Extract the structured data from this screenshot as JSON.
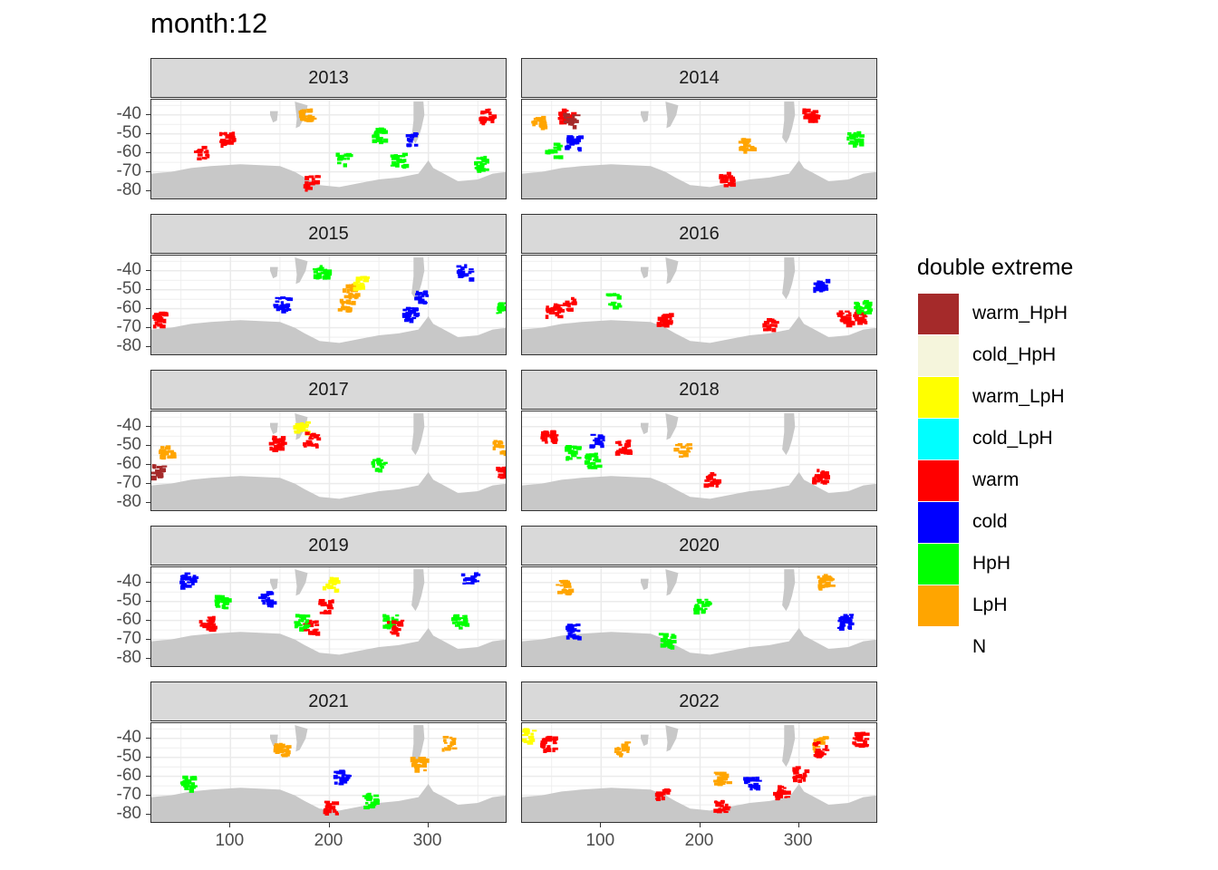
{
  "title": "month:12",
  "chart_data": {
    "type": "heatmap",
    "title": "month:12",
    "facet_labels": [
      "2013",
      "2014",
      "2015",
      "2016",
      "2017",
      "2018",
      "2019",
      "2020",
      "2021",
      "2022"
    ],
    "x_ticks": [
      100,
      200,
      300
    ],
    "y_ticks": [
      -40,
      -50,
      -60,
      -70,
      -80
    ],
    "y_tick_labels": [
      "-40",
      "-50",
      "-60",
      "-70",
      "-80"
    ],
    "x_tick_labels": [
      "100",
      "200",
      "300"
    ],
    "xlim": [
      20,
      380
    ],
    "ylim": [
      -85,
      -32
    ],
    "legend": {
      "title": "double extreme",
      "placement": "right",
      "entries": [
        {
          "label": "warm_HpH",
          "color": "#a52a2a"
        },
        {
          "label": "cold_HpH",
          "color": "#f5f5dc"
        },
        {
          "label": "warm_LpH",
          "color": "#ffff00"
        },
        {
          "label": "cold_LpH",
          "color": "#00ffff"
        },
        {
          "label": "warm",
          "color": "#ff0000"
        },
        {
          "label": "cold",
          "color": "#0000ff"
        },
        {
          "label": "HpH",
          "color": "#00ff00"
        },
        {
          "label": "LpH",
          "color": "#ffa500"
        },
        {
          "label": "N",
          "color": "#ffffff"
        }
      ]
    },
    "panels": [
      {
        "year": "2013",
        "patches": [
          {
            "c": "HpH",
            "lon": 248,
            "lat": -50
          },
          {
            "c": "cold",
            "lon": 283,
            "lat": -52
          },
          {
            "c": "HpH",
            "lon": 213,
            "lat": -63
          },
          {
            "c": "HpH",
            "lon": 352,
            "lat": -65
          },
          {
            "c": "LpH",
            "lon": 175,
            "lat": -40
          },
          {
            "c": "warm",
            "lon": 358,
            "lat": -40
          },
          {
            "c": "warm",
            "lon": 95,
            "lat": -52
          },
          {
            "c": "warm",
            "lon": 70,
            "lat": -59
          },
          {
            "c": "HpH",
            "lon": 268,
            "lat": -63
          },
          {
            "c": "warm",
            "lon": 180,
            "lat": -75
          }
        ]
      },
      {
        "year": "2014",
        "patches": [
          {
            "c": "warm",
            "lon": 63,
            "lat": -40
          },
          {
            "c": "warm_HpH",
            "lon": 67,
            "lat": -42
          },
          {
            "c": "LpH",
            "lon": 35,
            "lat": -43
          },
          {
            "c": "cold",
            "lon": 70,
            "lat": -54
          },
          {
            "c": "HpH",
            "lon": 50,
            "lat": -58
          },
          {
            "c": "LpH",
            "lon": 245,
            "lat": -55
          },
          {
            "c": "warm",
            "lon": 310,
            "lat": -40
          },
          {
            "c": "HpH",
            "lon": 355,
            "lat": -52
          },
          {
            "c": "warm",
            "lon": 225,
            "lat": -73
          }
        ]
      },
      {
        "year": "2015",
        "patches": [
          {
            "c": "warm",
            "lon": 28,
            "lat": -65
          },
          {
            "c": "LpH",
            "lon": 220,
            "lat": -50
          },
          {
            "c": "warm_LpH",
            "lon": 230,
            "lat": -46
          },
          {
            "c": "HpH",
            "lon": 190,
            "lat": -40
          },
          {
            "c": "cold",
            "lon": 290,
            "lat": -53
          },
          {
            "c": "cold",
            "lon": 335,
            "lat": -40
          },
          {
            "c": "LpH",
            "lon": 215,
            "lat": -58
          },
          {
            "c": "HpH",
            "lon": 375,
            "lat": -60
          },
          {
            "c": "cold",
            "lon": 280,
            "lat": -62
          },
          {
            "c": "cold",
            "lon": 150,
            "lat": -57
          }
        ]
      },
      {
        "year": "2016",
        "patches": [
          {
            "c": "warm",
            "lon": 50,
            "lat": -60
          },
          {
            "c": "warm",
            "lon": 65,
            "lat": -57
          },
          {
            "c": "HpH",
            "lon": 110,
            "lat": -55
          },
          {
            "c": "warm",
            "lon": 162,
            "lat": -65
          },
          {
            "c": "warm",
            "lon": 360,
            "lat": -63
          },
          {
            "c": "warm",
            "lon": 345,
            "lat": -64
          },
          {
            "c": "HpH",
            "lon": 362,
            "lat": -58
          },
          {
            "c": "cold",
            "lon": 320,
            "lat": -47
          },
          {
            "c": "warm",
            "lon": 270,
            "lat": -67
          }
        ]
      },
      {
        "year": "2017",
        "patches": [
          {
            "c": "warm_LpH",
            "lon": 170,
            "lat": -40
          },
          {
            "c": "warm",
            "lon": 180,
            "lat": -46
          },
          {
            "c": "LpH",
            "lon": 33,
            "lat": -53
          },
          {
            "c": "warm_HpH",
            "lon": 25,
            "lat": -63
          },
          {
            "c": "warm",
            "lon": 145,
            "lat": -48
          },
          {
            "c": "HpH",
            "lon": 248,
            "lat": -59
          },
          {
            "c": "warm",
            "lon": 375,
            "lat": -64
          },
          {
            "c": "LpH",
            "lon": 370,
            "lat": -50
          }
        ]
      },
      {
        "year": "2018",
        "patches": [
          {
            "c": "warm",
            "lon": 45,
            "lat": -45
          },
          {
            "c": "HpH",
            "lon": 90,
            "lat": -57
          },
          {
            "c": "cold",
            "lon": 95,
            "lat": -47
          },
          {
            "c": "HpH",
            "lon": 70,
            "lat": -53
          },
          {
            "c": "warm",
            "lon": 120,
            "lat": -50
          },
          {
            "c": "warm",
            "lon": 320,
            "lat": -65
          },
          {
            "c": "LpH",
            "lon": 180,
            "lat": -52
          },
          {
            "c": "warm",
            "lon": 210,
            "lat": -67
          }
        ]
      },
      {
        "year": "2019",
        "patches": [
          {
            "c": "cold",
            "lon": 55,
            "lat": -38
          },
          {
            "c": "warm_LpH",
            "lon": 200,
            "lat": -40
          },
          {
            "c": "warm",
            "lon": 195,
            "lat": -52
          },
          {
            "c": "HpH",
            "lon": 260,
            "lat": -60
          },
          {
            "c": "warm",
            "lon": 265,
            "lat": -63
          },
          {
            "c": "warm",
            "lon": 180,
            "lat": -63
          },
          {
            "c": "HpH",
            "lon": 170,
            "lat": -60
          },
          {
            "c": "warm",
            "lon": 75,
            "lat": -61
          },
          {
            "c": "cold",
            "lon": 135,
            "lat": -48
          },
          {
            "c": "cold",
            "lon": 340,
            "lat": -38
          },
          {
            "c": "HpH",
            "lon": 330,
            "lat": -60
          },
          {
            "c": "HpH",
            "lon": 90,
            "lat": -50
          }
        ]
      },
      {
        "year": "2020",
        "patches": [
          {
            "c": "LpH",
            "lon": 325,
            "lat": -39
          },
          {
            "c": "cold",
            "lon": 345,
            "lat": -60
          },
          {
            "c": "HpH",
            "lon": 200,
            "lat": -52
          },
          {
            "c": "cold",
            "lon": 70,
            "lat": -65
          },
          {
            "c": "LpH",
            "lon": 60,
            "lat": -42
          },
          {
            "c": "HpH",
            "lon": 165,
            "lat": -70
          }
        ]
      },
      {
        "year": "2021",
        "patches": [
          {
            "c": "LpH",
            "lon": 288,
            "lat": -53
          },
          {
            "c": "LpH",
            "lon": 320,
            "lat": -42
          },
          {
            "c": "warm",
            "lon": 200,
            "lat": -76
          },
          {
            "c": "HpH",
            "lon": 240,
            "lat": -72
          },
          {
            "c": "HpH",
            "lon": 55,
            "lat": -63
          },
          {
            "c": "LpH",
            "lon": 150,
            "lat": -45
          },
          {
            "c": "cold",
            "lon": 210,
            "lat": -60
          }
        ]
      },
      {
        "year": "2022",
        "patches": [
          {
            "c": "warm",
            "lon": 45,
            "lat": -42
          },
          {
            "c": "warm_LpH",
            "lon": 25,
            "lat": -38
          },
          {
            "c": "LpH",
            "lon": 120,
            "lat": -45
          },
          {
            "c": "LpH",
            "lon": 220,
            "lat": -60
          },
          {
            "c": "warm",
            "lon": 300,
            "lat": -58
          },
          {
            "c": "warm",
            "lon": 280,
            "lat": -68
          },
          {
            "c": "warm",
            "lon": 220,
            "lat": -75
          },
          {
            "c": "LpH",
            "lon": 320,
            "lat": -42
          },
          {
            "c": "warm",
            "lon": 360,
            "lat": -40
          },
          {
            "c": "cold",
            "lon": 250,
            "lat": -63
          },
          {
            "c": "warm",
            "lon": 160,
            "lat": -69
          },
          {
            "c": "warm",
            "lon": 320,
            "lat": -45
          }
        ]
      }
    ]
  }
}
